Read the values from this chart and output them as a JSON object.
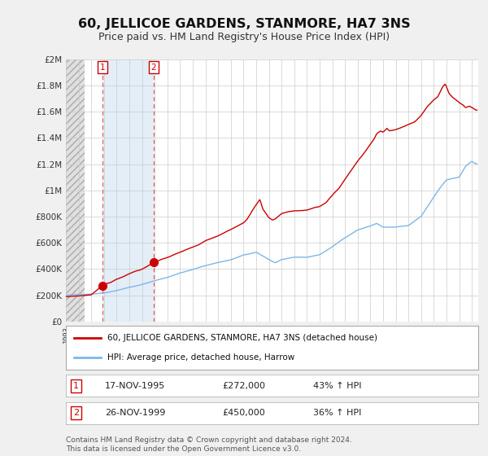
{
  "title": "60, JELLICOE GARDENS, STANMORE, HA7 3NS",
  "subtitle": "Price paid vs. HM Land Registry's House Price Index (HPI)",
  "title_fontsize": 11.5,
  "subtitle_fontsize": 9,
  "bg_color": "#f0f0f0",
  "plot_bg_color": "#ffffff",
  "legend_line1": "60, JELLICOE GARDENS, STANMORE, HA7 3NS (detached house)",
  "legend_line2": "HPI: Average price, detached house, Harrow",
  "footer": "Contains HM Land Registry data © Crown copyright and database right 2024.\nThis data is licensed under the Open Government Licence v3.0.",
  "sale1_date": "17-NOV-1995",
  "sale1_price": "£272,000",
  "sale1_hpi": "43% ↑ HPI",
  "sale1_year": 1995.88,
  "sale1_value": 272000,
  "sale2_date": "26-NOV-1999",
  "sale2_price": "£450,000",
  "sale2_hpi": "36% ↑ HPI",
  "sale2_year": 1999.9,
  "sale2_value": 450000,
  "hpi_color": "#7EB6E8",
  "price_color": "#CC0000",
  "dashed_color": "#E06060",
  "shade_color": "#D8E8F5",
  "ylabel_color": "#333333",
  "ylim": [
    0,
    2000000
  ],
  "yticks": [
    0,
    200000,
    400000,
    600000,
    800000,
    1000000,
    1200000,
    1400000,
    1600000,
    1800000,
    2000000
  ],
  "ytick_labels": [
    "£0",
    "£200K",
    "£400K",
    "£600K",
    "£800K",
    "£1M",
    "£1.2M",
    "£1.4M",
    "£1.6M",
    "£1.8M",
    "£2M"
  ],
  "xlim_start": 1993.0,
  "xlim_end": 2025.5
}
